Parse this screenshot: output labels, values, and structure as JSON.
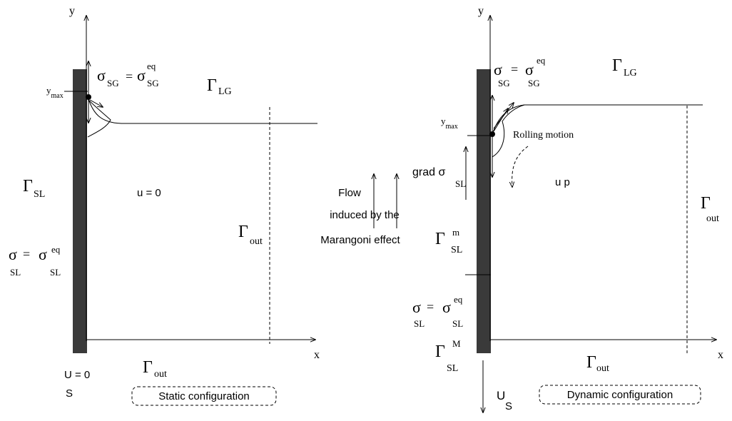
{
  "left": {
    "y_axis": "y",
    "x_axis": "x",
    "y_max": {
      "base": "y",
      "sub": "max"
    },
    "sigma_sg": {
      "lhs": "σ",
      "lhs_sub": "SG",
      "eq": "=",
      "rhs": "σ",
      "rhs_sub": "SG",
      "rhs_sup": "eq"
    },
    "gamma_lg": {
      "base": "Γ",
      "sub": "LG"
    },
    "gamma_sl": {
      "base": "Γ",
      "sub": "SL"
    },
    "velocity": "u = 0",
    "gamma_out_right": {
      "base": "Γ",
      "sub": "out"
    },
    "sigma_sl": {
      "lhs": "σ",
      "lhs_sub": "SL",
      "eq": "=",
      "rhs": "σ",
      "rhs_sub": "SL",
      "rhs_sup": "eq"
    },
    "gamma_out_bottom": {
      "base": "Γ",
      "sub": "out"
    },
    "wall_velocity": {
      "base": "U = 0",
      "sub": "S"
    },
    "caption": "Static configuration"
  },
  "middle": {
    "line1": "Flow",
    "line2": "induced by the",
    "line3": "Marangoni effect"
  },
  "right": {
    "y_axis": "y",
    "x_axis": "x",
    "sigma_sg": {
      "lhs": "σ",
      "lhs_sub": "SG",
      "eq": "=",
      "rhs": "σ",
      "rhs_sub": "SG",
      "rhs_sup": "eq"
    },
    "gamma_lg": {
      "base": "Γ",
      "sub": "LG"
    },
    "y_max": {
      "base": "y",
      "sub": "max"
    },
    "rolling": "Rolling motion",
    "grad_sigma": {
      "base": "grad  σ",
      "sub": "SL"
    },
    "velocity": "u  p",
    "gamma_out_right": {
      "base": "Γ",
      "sub": "out"
    },
    "gamma_sl_m": {
      "base": "Γ",
      "sub": "SL",
      "sup": "m"
    },
    "sigma_sl": {
      "lhs": "σ",
      "lhs_sub": "SL",
      "eq": "=",
      "rhs": "σ",
      "rhs_sub": "SL",
      "rhs_sup": "eq"
    },
    "gamma_sl_M": {
      "base": "Γ",
      "sub": "SL",
      "sup": "M"
    },
    "gamma_out_bottom": {
      "base": "Γ",
      "sub": "out"
    },
    "wall_velocity": {
      "base": "U",
      "sub": "S"
    },
    "caption": "Dynamic configuration"
  }
}
